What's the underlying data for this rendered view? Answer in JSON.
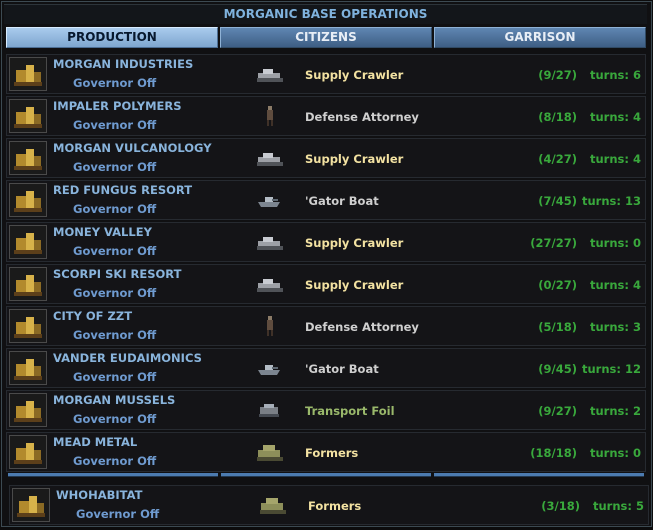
{
  "window": {
    "title": "MORGANIC BASE OPERATIONS"
  },
  "tabs": [
    {
      "label": "PRODUCTION",
      "active": true
    },
    {
      "label": "CITIZENS",
      "active": false
    },
    {
      "label": "GARRISON",
      "active": false
    }
  ],
  "colors": {
    "accent": "#7fb2dd",
    "unit_normal": "#cfcfcf",
    "unit_highlight": "#f3e2a2",
    "unit_sea": "#9ab96b",
    "progress": "#39a83c"
  },
  "bases": [
    {
      "name": "MORGAN INDUSTRIES",
      "governor": "Governor Off",
      "unit": "Supply Crawler",
      "unit_icon": "crawler-icon",
      "unit_color": "#f3e2a2",
      "progress": "(9/27)",
      "turns": "turns:  6"
    },
    {
      "name": "IMPALER POLYMERS",
      "governor": "Governor Off",
      "unit": "Defense Attorney",
      "unit_icon": "infantry-icon",
      "unit_color": "#cfcfcf",
      "progress": "(8/18)",
      "turns": "turns:  4"
    },
    {
      "name": "MORGAN VULCANOLOGY",
      "governor": "Governor Off",
      "unit": "Supply Crawler",
      "unit_icon": "crawler-icon",
      "unit_color": "#f3e2a2",
      "progress": "(4/27)",
      "turns": "turns:  4"
    },
    {
      "name": "RED FUNGUS RESORT",
      "governor": "Governor Off",
      "unit": "'Gator Boat",
      "unit_icon": "boat-icon",
      "unit_color": "#cfcfcf",
      "progress": "(7/45)",
      "turns": "turns: 13"
    },
    {
      "name": "MONEY VALLEY",
      "governor": "Governor Off",
      "unit": "Supply Crawler",
      "unit_icon": "crawler-icon",
      "unit_color": "#f3e2a2",
      "progress": "(27/27)",
      "turns": "turns:  0"
    },
    {
      "name": "SCORPI SKI RESORT",
      "governor": "Governor Off",
      "unit": "Supply Crawler",
      "unit_icon": "crawler-icon",
      "unit_color": "#f3e2a2",
      "progress": "(0/27)",
      "turns": "turns:  4"
    },
    {
      "name": "CITY OF ZZT",
      "governor": "Governor Off",
      "unit": "Defense Attorney",
      "unit_icon": "infantry-icon",
      "unit_color": "#cfcfcf",
      "progress": "(5/18)",
      "turns": "turns:  3"
    },
    {
      "name": "VANDER EUDAIMONICS",
      "governor": "Governor Off",
      "unit": "'Gator Boat",
      "unit_icon": "boat-icon",
      "unit_color": "#cfcfcf",
      "progress": "(9/45)",
      "turns": "turns: 12"
    },
    {
      "name": "MORGAN MUSSELS",
      "governor": "Governor Off",
      "unit": "Transport Foil",
      "unit_icon": "foil-icon",
      "unit_color": "#9ab96b",
      "progress": "(9/27)",
      "turns": "turns:  2"
    },
    {
      "name": "MEAD METAL",
      "governor": "Governor Off",
      "unit": "Formers",
      "unit_icon": "formers-icon",
      "unit_color": "#f3e2a2",
      "progress": "(18/18)",
      "turns": "turns:  0"
    }
  ],
  "footer": {
    "name": "WHOHABITAT",
    "governor": "Governor Off",
    "unit": "Formers",
    "unit_icon": "formers-icon",
    "unit_color": "#f3e2a2",
    "progress": "(3/18)",
    "turns": "turns:  5"
  }
}
